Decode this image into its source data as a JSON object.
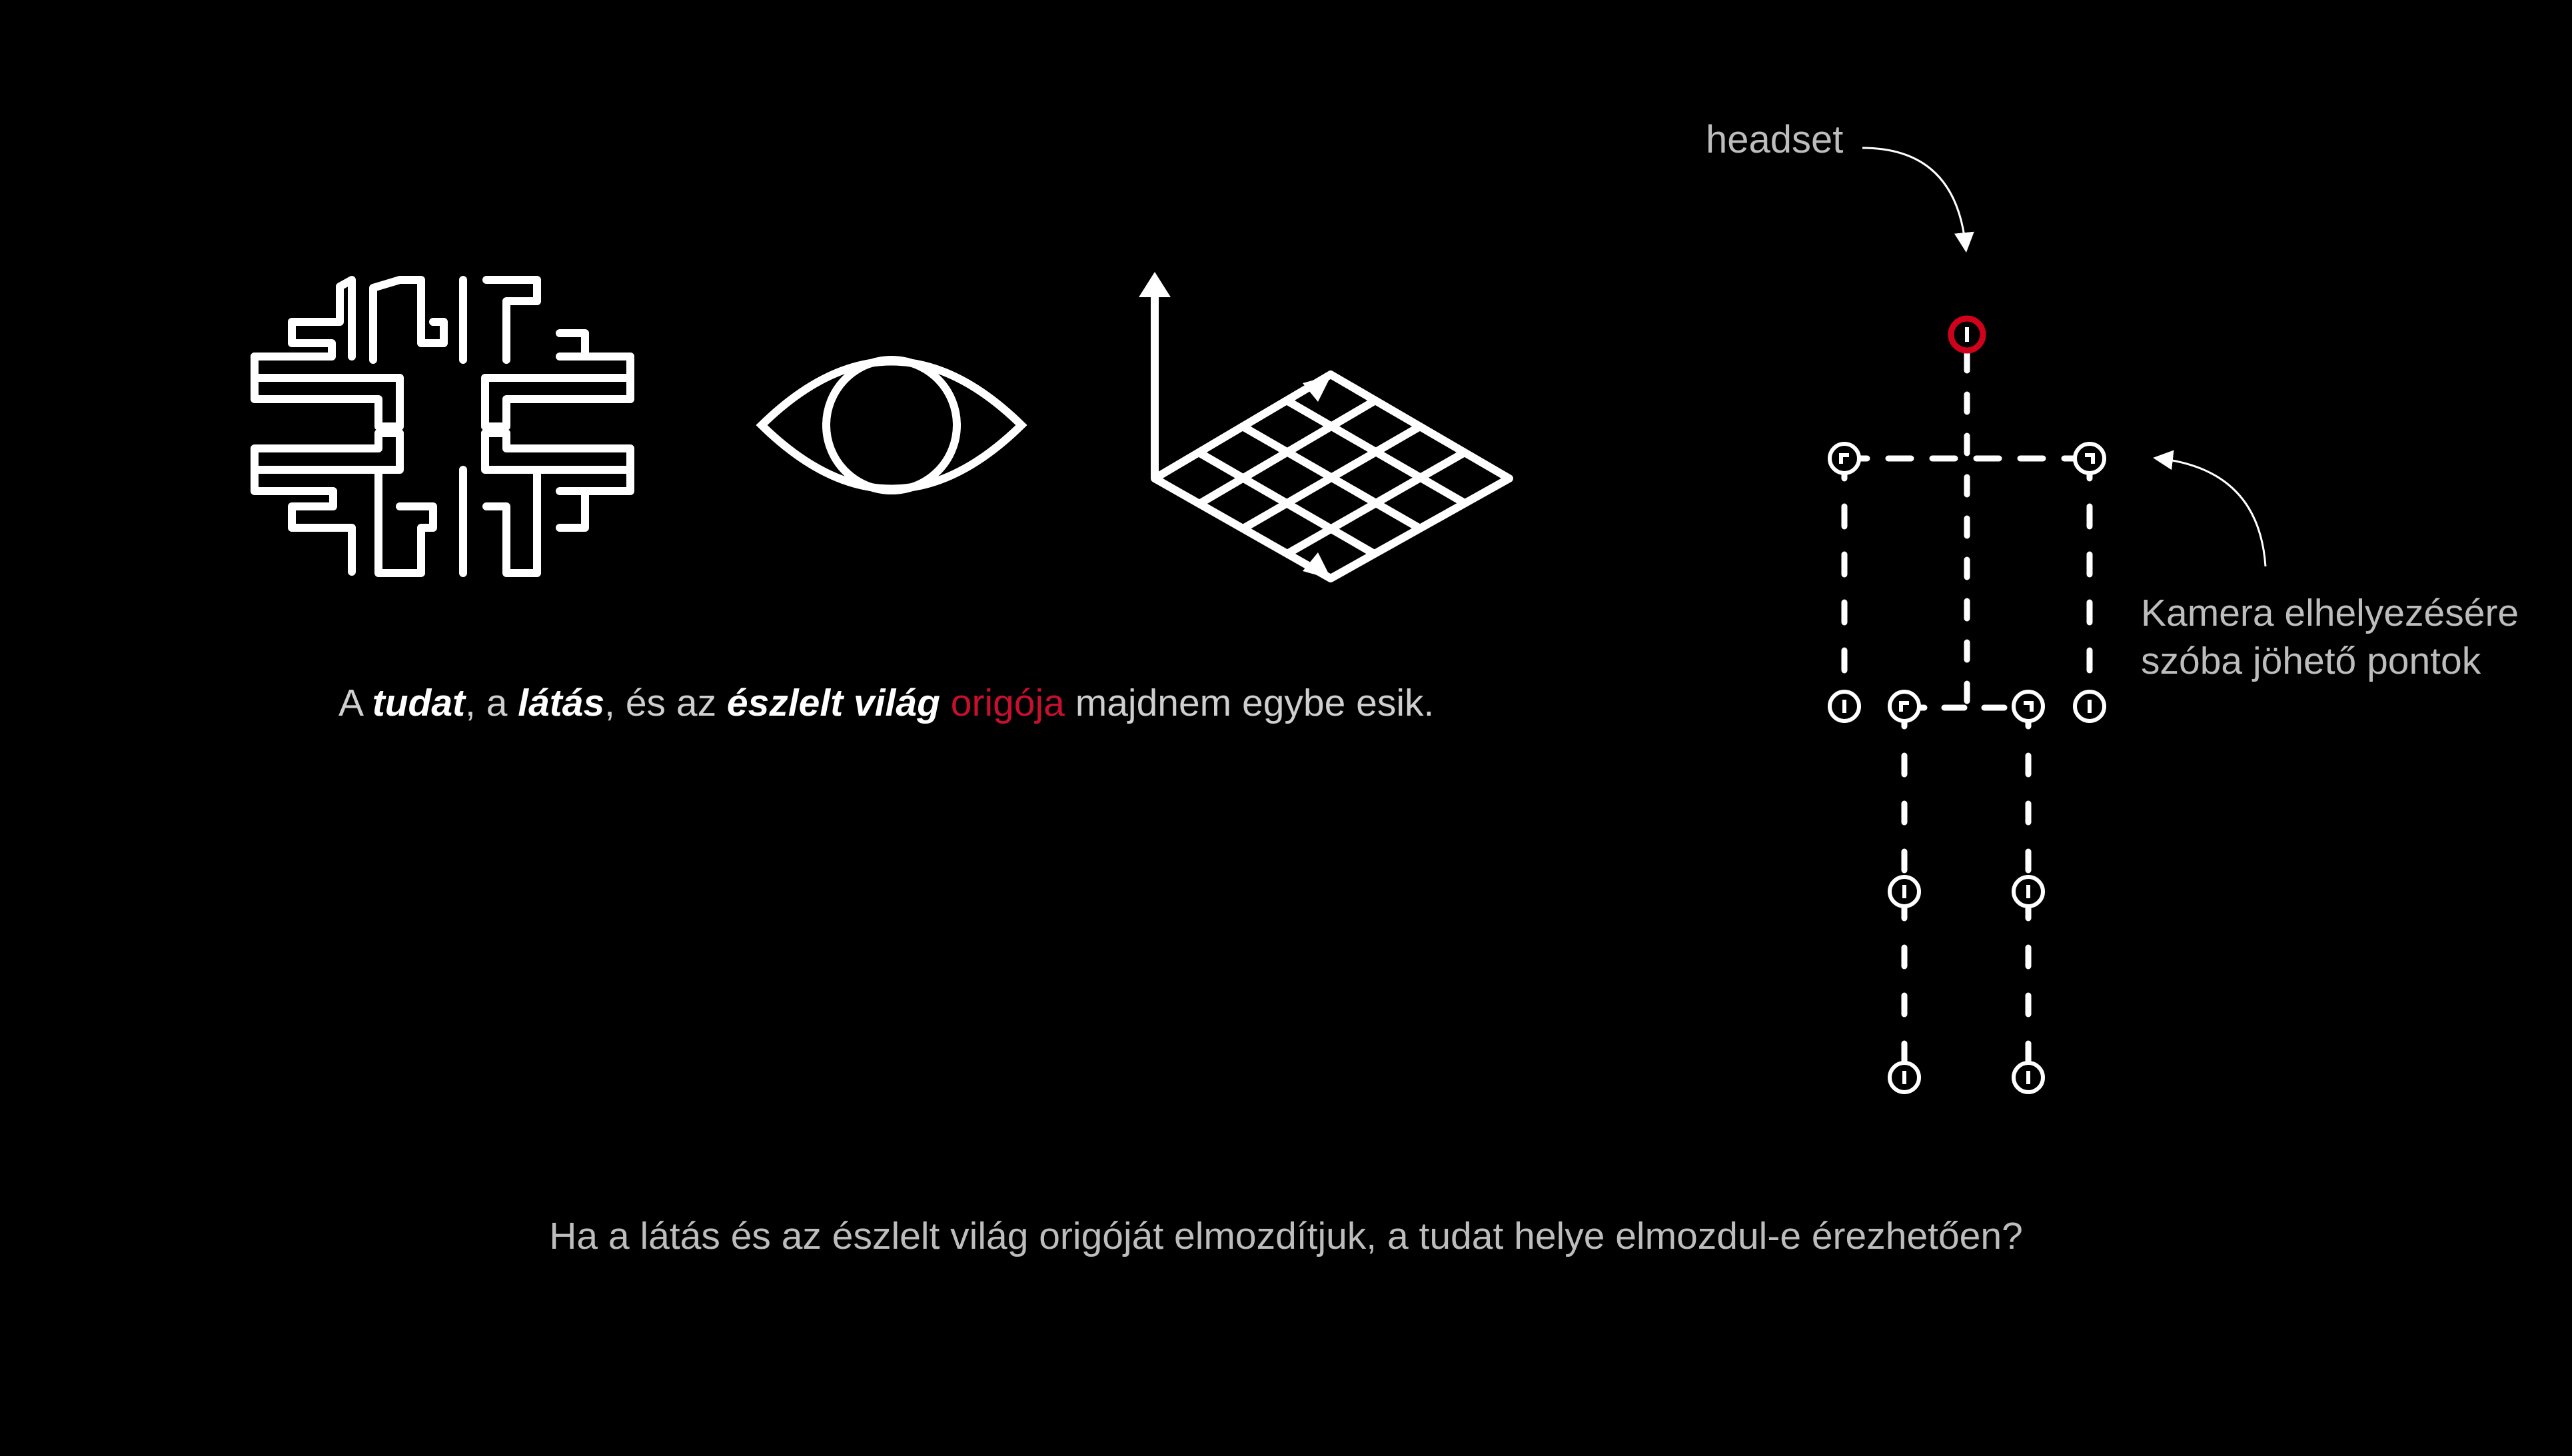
{
  "colors": {
    "background": "#000000",
    "foreground": "#ffffff",
    "accent": "#c8102e"
  },
  "icons": [
    "maze-brain-icon",
    "eye-icon",
    "world-axes-grid-icon",
    "stick-figure-skeleton-icon",
    "headset-marker-icon",
    "arrow-icon"
  ],
  "caption_top": {
    "p1": "A ",
    "tudat": "tudat",
    "p2": ", a ",
    "latas": "látás",
    "p3": ", és az ",
    "eszlelt_vilag": "észlelt világ",
    "p4": " ",
    "origoja": "origója",
    "p5": " majdnem egybe esik."
  },
  "caption_bottom": "Ha a látás és az észlelt világ origóját elmozdítjuk, a tudat helye elmozdul-e érezhetően?",
  "figure": {
    "headset_label": "headset",
    "camera_label": "Kamera elhelyezésére szóba jöhető pontok"
  }
}
